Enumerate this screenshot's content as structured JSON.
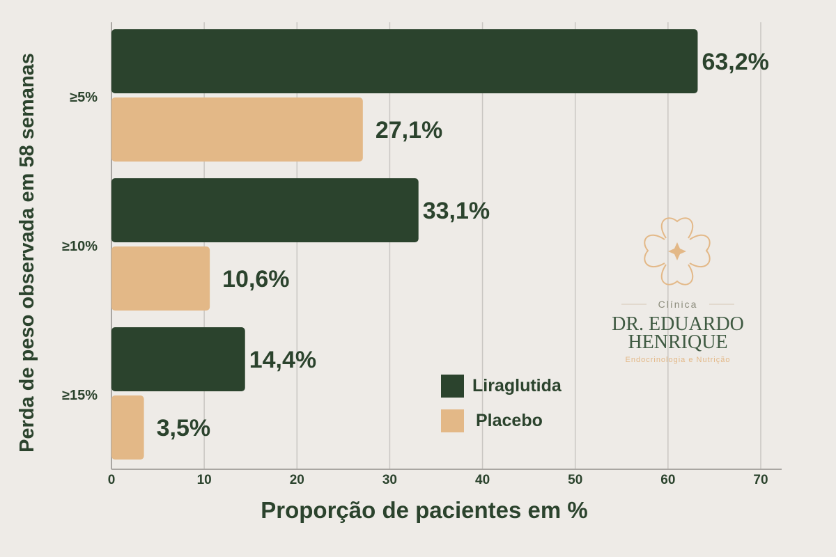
{
  "chart_data": {
    "type": "bar",
    "orientation": "horizontal",
    "categories": [
      "≥5%",
      "≥10%",
      "≥15%"
    ],
    "series": [
      {
        "name": "Liraglutida",
        "values": [
          63.2,
          33.1,
          14.4
        ],
        "labels": [
          "63,2%",
          "33,1%",
          "14,4%"
        ],
        "color": "#2b432d"
      },
      {
        "name": "Placebo",
        "values": [
          27.1,
          10.6,
          3.5
        ],
        "labels": [
          "27,1%",
          "10,6%",
          "3,5%"
        ],
        "color": "#e3b887"
      }
    ],
    "xlabel": "Proporção de pacientes em %",
    "ylabel": "Perda de peso observada em 58 semanas",
    "xlim": [
      0,
      70
    ],
    "xticks": [
      "0",
      "10",
      "20",
      "30",
      "40",
      "50",
      "60",
      "70"
    ],
    "grid": "vertical",
    "legend_position": "bottom-right"
  },
  "logo": {
    "line1": "Clínica",
    "line2": "DR. EDUARDO",
    "line3": "HENRIQUE",
    "line4": "Endocrinologia e Nutrição"
  },
  "colors": {
    "background": "#eeebe7",
    "text": "#2b432d",
    "gridline": "#c9c6c2",
    "accent": "#e3b887"
  }
}
